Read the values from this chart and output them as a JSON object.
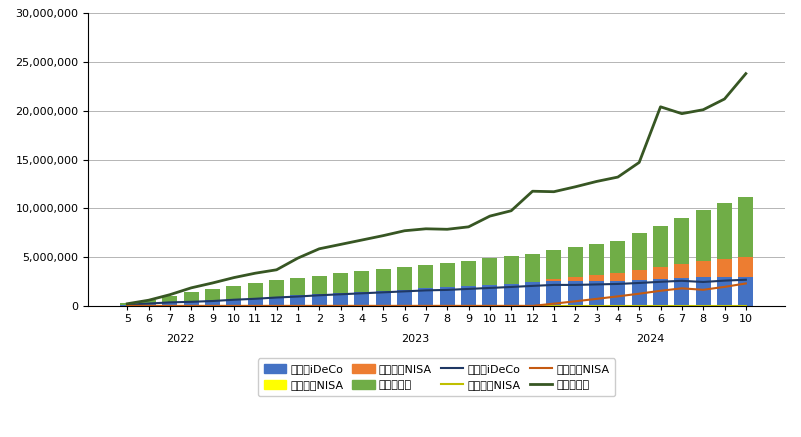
{
  "months": [
    "5",
    "6",
    "7",
    "8",
    "9",
    "10",
    "11",
    "12",
    "1",
    "2",
    "3",
    "4",
    "5",
    "6",
    "7",
    "8",
    "9",
    "10",
    "11",
    "12",
    "1",
    "2",
    "3",
    "4",
    "5",
    "6",
    "7",
    "8",
    "9",
    "10"
  ],
  "year_label_positions": [
    {
      "label": "2022",
      "start": 0,
      "end": 5
    },
    {
      "label": "2023",
      "start": 8,
      "end": 19
    },
    {
      "label": "2024",
      "start": 20,
      "end": 29
    }
  ],
  "inv_ideco": [
    120000,
    240000,
    360000,
    480000,
    600000,
    720000,
    840000,
    960000,
    1080000,
    1200000,
    1320000,
    1440000,
    1560000,
    1680000,
    1800000,
    1920000,
    2040000,
    2160000,
    2280000,
    2400000,
    2520000,
    2520000,
    2520000,
    2520000,
    2640000,
    2760000,
    2880000,
    3000000,
    3000000,
    3000000
  ],
  "inv_oldnisa": [
    0,
    0,
    0,
    0,
    0,
    0,
    0,
    0,
    0,
    0,
    0,
    0,
    0,
    0,
    0,
    0,
    0,
    0,
    0,
    0,
    0,
    0,
    0,
    0,
    0,
    0,
    0,
    0,
    0,
    0
  ],
  "inv_newnisa": [
    0,
    0,
    0,
    0,
    0,
    0,
    0,
    0,
    0,
    0,
    0,
    0,
    0,
    0,
    0,
    0,
    0,
    0,
    0,
    0,
    200000,
    400000,
    600000,
    800000,
    1000000,
    1200000,
    1400000,
    1600000,
    1800000,
    2000000
  ],
  "inv_tokutei": [
    200000,
    400000,
    700000,
    900000,
    1100000,
    1300000,
    1500000,
    1700000,
    1800000,
    1900000,
    2000000,
    2100000,
    2200000,
    2300000,
    2400000,
    2500000,
    2600000,
    2700000,
    2800000,
    2900000,
    3000000,
    3100000,
    3200000,
    3300000,
    3800000,
    4200000,
    4700000,
    5200000,
    5700000,
    6200000
  ],
  "eval_ideco": [
    120000,
    240000,
    360000,
    420000,
    500000,
    630000,
    730000,
    860000,
    960000,
    1090000,
    1190000,
    1290000,
    1390000,
    1490000,
    1590000,
    1640000,
    1740000,
    1840000,
    1940000,
    2050000,
    2150000,
    2150000,
    2200000,
    2250000,
    2350000,
    2470000,
    2570000,
    2450000,
    2590000,
    2680000
  ],
  "eval_oldnisa": [
    0,
    0,
    0,
    0,
    0,
    0,
    0,
    0,
    0,
    0,
    0,
    0,
    0,
    0,
    0,
    0,
    0,
    0,
    0,
    0,
    0,
    0,
    0,
    0,
    0,
    0,
    0,
    0,
    0,
    0
  ],
  "eval_newnisa": [
    0,
    0,
    0,
    0,
    0,
    0,
    0,
    0,
    0,
    0,
    0,
    0,
    0,
    0,
    0,
    0,
    0,
    0,
    0,
    0,
    230000,
    470000,
    720000,
    980000,
    1250000,
    1550000,
    1800000,
    1650000,
    1950000,
    2300000
  ],
  "eval_tokutei": [
    220000,
    580000,
    1150000,
    1850000,
    2350000,
    2900000,
    3350000,
    3700000,
    4900000,
    5850000,
    6300000,
    6750000,
    7200000,
    7700000,
    7900000,
    7850000,
    8100000,
    9200000,
    9750000,
    11750000,
    11700000,
    12200000,
    12750000,
    13200000,
    14700000,
    20400000,
    19700000,
    20100000,
    21200000,
    23800000
  ],
  "bar_color_ideco": "#4472C4",
  "bar_color_oldnisa": "#FFFF00",
  "bar_color_newnisa": "#ED7D31",
  "bar_color_tokutei": "#70AD47",
  "line_color_ideco": "#1F3864",
  "line_color_oldnisa": "#BFBF00",
  "line_color_newnisa": "#C55A11",
  "line_color_tokutei": "#375623",
  "ylim_max": 30000000,
  "ytick_step": 5000000
}
